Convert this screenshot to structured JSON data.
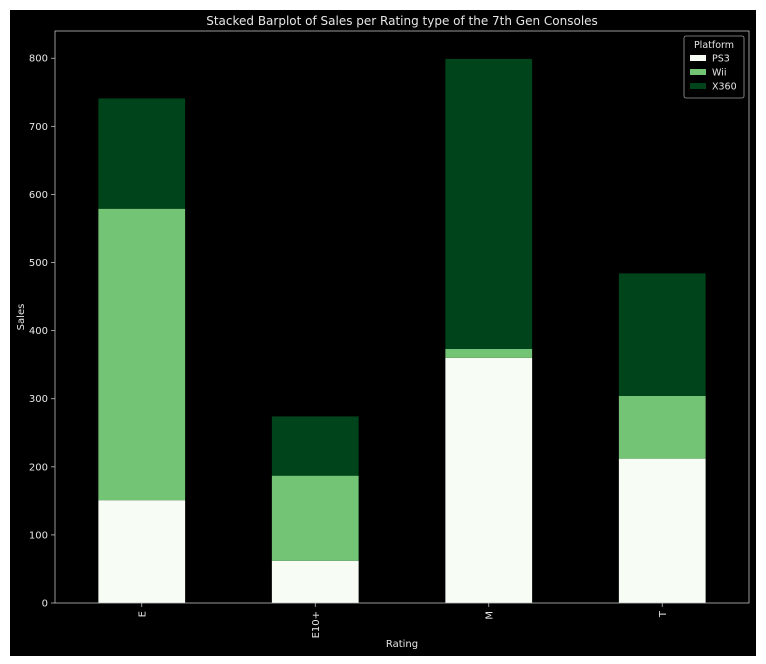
{
  "chart_data": {
    "type": "bar",
    "stacked": true,
    "title": "Stacked Barplot of Sales per Rating type of the 7th Gen Consoles",
    "xlabel": "Rating",
    "ylabel": "Sales",
    "categories": [
      "E",
      "E10+",
      "M",
      "T"
    ],
    "series": [
      {
        "name": "PS3",
        "values": [
          151,
          62,
          360,
          212
        ],
        "color": "#f7fcf5"
      },
      {
        "name": "Wii",
        "values": [
          428,
          125,
          13,
          92
        ],
        "color": "#74c476"
      },
      {
        "name": "X360",
        "values": [
          162,
          87,
          426,
          180
        ],
        "color": "#00441b"
      }
    ],
    "ylim": [
      0,
      840
    ],
    "yticks": [
      0,
      100,
      200,
      300,
      400,
      500,
      600,
      700,
      800
    ],
    "grid": false,
    "legend": {
      "title": "Platform",
      "position": "top-right"
    },
    "colors": {
      "figure_bg": "#000000",
      "axes_bg": "#000000",
      "text": "#e6e6e6",
      "spine": "#bfbfbf"
    }
  }
}
